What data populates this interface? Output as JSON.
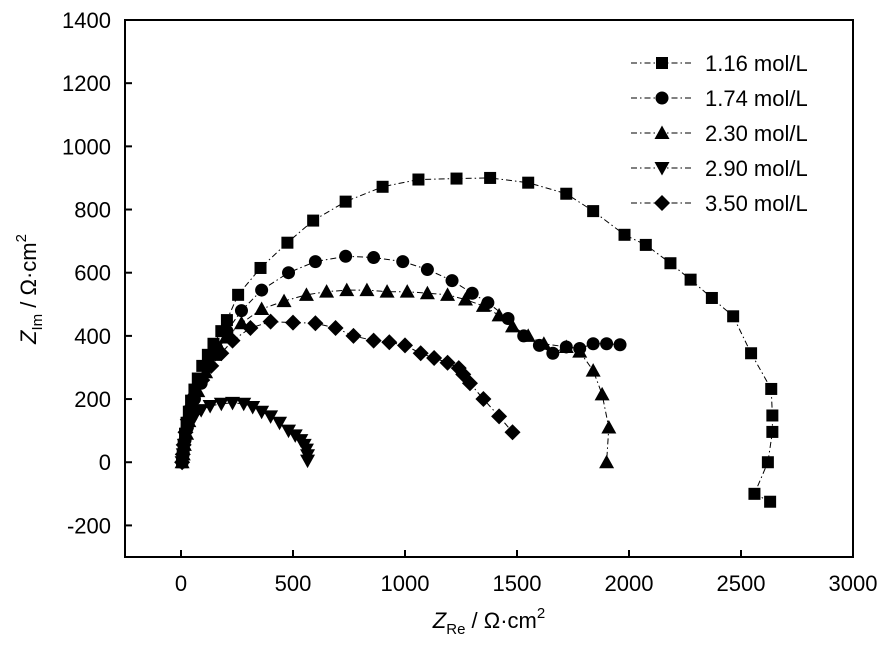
{
  "chart_data": {
    "type": "scatter",
    "title": "",
    "xlabel": {
      "symbol": "Z",
      "subscript": "Re",
      "unit": " / Ω·cm",
      "superscript": "2"
    },
    "ylabel": {
      "symbol": "Z",
      "subscript": "Im",
      "unit": " / Ω·cm",
      "superscript": "2"
    },
    "xlim": [
      -250,
      3000
    ],
    "ylim": [
      -300,
      1400
    ],
    "xticks": [
      0,
      500,
      1000,
      1500,
      2000,
      2500,
      3000
    ],
    "yticks": [
      -200,
      0,
      200,
      400,
      600,
      800,
      1000,
      1200,
      1400
    ],
    "grid": false,
    "legend_position": "top-right",
    "line_style": "dashed-dot connecting line",
    "series": [
      {
        "name": "1.16 mol/L",
        "marker": "square",
        "points": [
          [
            5,
            0
          ],
          [
            8,
            25
          ],
          [
            12,
            55
          ],
          [
            18,
            90
          ],
          [
            25,
            125
          ],
          [
            35,
            160
          ],
          [
            45,
            195
          ],
          [
            60,
            230
          ],
          [
            75,
            265
          ],
          [
            95,
            305
          ],
          [
            120,
            340
          ],
          [
            145,
            375
          ],
          [
            180,
            415
          ],
          [
            205,
            450
          ],
          [
            255,
            530
          ],
          [
            355,
            615
          ],
          [
            475,
            695
          ],
          [
            590,
            765
          ],
          [
            735,
            825
          ],
          [
            900,
            872
          ],
          [
            1060,
            895
          ],
          [
            1230,
            898
          ],
          [
            1380,
            900
          ],
          [
            1550,
            885
          ],
          [
            1720,
            850
          ],
          [
            1840,
            795
          ],
          [
            1980,
            720
          ],
          [
            2075,
            688
          ],
          [
            2185,
            630
          ],
          [
            2275,
            578
          ],
          [
            2370,
            520
          ],
          [
            2465,
            462
          ],
          [
            2545,
            345
          ],
          [
            2635,
            232
          ],
          [
            2640,
            148
          ],
          [
            2640,
            96
          ],
          [
            2620,
            0
          ],
          [
            2560,
            -100
          ],
          [
            2630,
            -125
          ]
        ]
      },
      {
        "name": "1.74 mol/L",
        "marker": "circle",
        "points": [
          [
            5,
            0
          ],
          [
            10,
            30
          ],
          [
            18,
            70
          ],
          [
            28,
            110
          ],
          [
            40,
            150
          ],
          [
            60,
            200
          ],
          [
            90,
            250
          ],
          [
            125,
            305
          ],
          [
            160,
            360
          ],
          [
            205,
            415
          ],
          [
            270,
            480
          ],
          [
            360,
            545
          ],
          [
            480,
            600
          ],
          [
            600,
            635
          ],
          [
            735,
            652
          ],
          [
            860,
            648
          ],
          [
            990,
            635
          ],
          [
            1100,
            610
          ],
          [
            1210,
            575
          ],
          [
            1300,
            535
          ],
          [
            1370,
            505
          ],
          [
            1460,
            455
          ],
          [
            1530,
            400
          ],
          [
            1600,
            370
          ],
          [
            1660,
            345
          ],
          [
            1720,
            365
          ],
          [
            1780,
            360
          ],
          [
            1840,
            375
          ],
          [
            1900,
            375
          ],
          [
            1960,
            372
          ]
        ]
      },
      {
        "name": "2.30 mol/L",
        "marker": "triangle-up",
        "points": [
          [
            5,
            0
          ],
          [
            10,
            25
          ],
          [
            15,
            55
          ],
          [
            25,
            90
          ],
          [
            35,
            130
          ],
          [
            50,
            175
          ],
          [
            75,
            225
          ],
          [
            110,
            285
          ],
          [
            150,
            340
          ],
          [
            200,
            395
          ],
          [
            270,
            440
          ],
          [
            360,
            485
          ],
          [
            460,
            510
          ],
          [
            560,
            530
          ],
          [
            650,
            540
          ],
          [
            740,
            545
          ],
          [
            830,
            545
          ],
          [
            920,
            540
          ],
          [
            1010,
            540
          ],
          [
            1100,
            535
          ],
          [
            1190,
            530
          ],
          [
            1270,
            515
          ],
          [
            1350,
            495
          ],
          [
            1420,
            465
          ],
          [
            1480,
            430
          ],
          [
            1550,
            400
          ],
          [
            1620,
            375
          ],
          [
            1720,
            365
          ],
          [
            1780,
            350
          ],
          [
            1840,
            290
          ],
          [
            1880,
            215
          ],
          [
            1910,
            110
          ],
          [
            1900,
            0
          ]
        ]
      },
      {
        "name": "2.90 mol/L",
        "marker": "triangle-down",
        "points": [
          [
            5,
            0
          ],
          [
            10,
            25
          ],
          [
            15,
            55
          ],
          [
            25,
            90
          ],
          [
            40,
            120
          ],
          [
            60,
            145
          ],
          [
            90,
            165
          ],
          [
            130,
            178
          ],
          [
            180,
            185
          ],
          [
            230,
            188
          ],
          [
            280,
            185
          ],
          [
            320,
            175
          ],
          [
            360,
            160
          ],
          [
            400,
            145
          ],
          [
            440,
            125
          ],
          [
            480,
            100
          ],
          [
            510,
            85
          ],
          [
            535,
            70
          ],
          [
            550,
            55
          ],
          [
            560,
            40
          ],
          [
            565,
            22
          ],
          [
            565,
            5
          ]
        ]
      },
      {
        "name": "3.50 mol/L",
        "marker": "diamond",
        "points": [
          [
            5,
            0
          ],
          [
            8,
            25
          ],
          [
            12,
            55
          ],
          [
            20,
            95
          ],
          [
            30,
            135
          ],
          [
            45,
            175
          ],
          [
            65,
            215
          ],
          [
            95,
            260
          ],
          [
            135,
            305
          ],
          [
            180,
            345
          ],
          [
            230,
            385
          ],
          [
            310,
            425
          ],
          [
            400,
            445
          ],
          [
            500,
            442
          ],
          [
            600,
            440
          ],
          [
            690,
            425
          ],
          [
            770,
            400
          ],
          [
            860,
            385
          ],
          [
            930,
            380
          ],
          [
            1000,
            370
          ],
          [
            1070,
            345
          ],
          [
            1130,
            330
          ],
          [
            1190,
            315
          ],
          [
            1240,
            298
          ],
          [
            1260,
            278
          ],
          [
            1290,
            250
          ],
          [
            1350,
            200
          ],
          [
            1420,
            145
          ],
          [
            1480,
            95
          ]
        ]
      }
    ]
  }
}
